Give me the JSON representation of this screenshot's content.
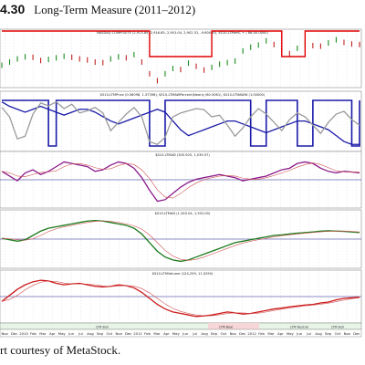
{
  "figure": {
    "number": "4.30",
    "title": "Long-Term Measure (2011–2012)",
    "caption": "rt courtesy of MetaStock."
  },
  "chart_data": [
    {
      "type": "line",
      "panel": "price",
      "title": "NASDAQ COMPOSITE (2,913.89, 2,916.85, 2,901.04, 2,902.31, -9.80000), $S10-LTMeHC + ( 86.00.0000)",
      "series": [
        {
          "name": "NASDAQ COMPOSITE",
          "color": "#1a8a1a",
          "style": "bars",
          "values": [
            2640,
            2700,
            2760,
            2800,
            2790,
            2730,
            2750,
            2780,
            2810,
            2790,
            2760,
            2740,
            2700,
            2690,
            2760,
            2800,
            2780,
            2840,
            2700,
            2480,
            2350,
            2480,
            2580,
            2560,
            2680,
            2620,
            2550,
            2600,
            2660,
            2690,
            2720,
            2910,
            2980,
            3020,
            3100,
            3030,
            2930,
            2860,
            2960,
            3040,
            3010,
            3000,
            3060,
            3120,
            3070,
            3040,
            3030
          ]
        },
        {
          "name": "$S10-LTMeHC",
          "color": "#e00000",
          "style": "step",
          "values": [
            1,
            1,
            1,
            1,
            1,
            1,
            1,
            1,
            1,
            1,
            1,
            1,
            1,
            1,
            1,
            1,
            1,
            1,
            1,
            0,
            0,
            0,
            0,
            0,
            0,
            0,
            0,
            1,
            1,
            1,
            1,
            1,
            1,
            1,
            1,
            1,
            0,
            0,
            0,
            1,
            1,
            1,
            1,
            1,
            1,
            1,
            1
          ]
        }
      ]
    },
    {
      "type": "line",
      "panel": "ltm-price",
      "title": "$S10-LTMPrice (0.56098, 1.37398), $S10-LTMAWPercent(Nearly (60.5061), $S10-LTMAWW (1.00000)",
      "series": [
        {
          "name": "$S10-LTMPrice",
          "color": "#1a1aa8",
          "values": [
            0.85,
            0.82,
            0.8,
            0.78,
            0.8,
            0.82,
            0.8,
            0.78,
            0.76,
            0.78,
            0.8,
            0.8,
            0.78,
            0.75,
            0.72,
            0.7,
            0.72,
            0.74,
            0.76,
            0.78,
            0.8,
            0.78,
            0.72,
            0.66,
            0.62,
            0.64,
            0.66,
            0.68,
            0.7,
            0.72,
            0.72,
            0.7,
            0.68,
            0.66,
            0.64,
            0.66,
            0.68,
            0.7,
            0.72,
            0.72,
            0.7,
            0.68,
            0.66,
            0.62,
            0.58,
            0.56,
            0.56
          ]
        },
        {
          "name": "$S10-LTMAWW",
          "color": "#1a1aa8",
          "style": "step",
          "values": [
            1,
            1,
            1,
            1,
            1,
            1,
            0,
            1,
            1,
            1,
            1,
            1,
            1,
            1,
            1,
            1,
            1,
            1,
            1,
            0,
            0,
            1,
            1,
            1,
            1,
            1,
            1,
            1,
            1,
            1,
            1,
            1,
            0,
            0,
            1,
            1,
            1,
            1,
            0,
            0,
            1,
            1,
            1,
            1,
            1,
            0,
            1
          ]
        },
        {
          "name": "$S10-LTMAWPercent",
          "color": "#9a9a9a",
          "values": [
            0.72,
            0.55,
            0.15,
            0.2,
            0.6,
            0.8,
            0.75,
            0.82,
            0.7,
            0.78,
            0.62,
            0.66,
            0.72,
            0.62,
            0.3,
            0.45,
            0.6,
            0.72,
            0.55,
            0.1,
            0.05,
            0.18,
            0.55,
            0.62,
            0.66,
            0.7,
            0.68,
            0.55,
            0.58,
            0.4,
            0.2,
            0.35,
            0.55,
            0.7,
            0.6,
            0.45,
            0.3,
            0.5,
            0.62,
            0.55,
            0.4,
            0.25,
            0.45,
            0.6,
            0.65,
            0.5,
            0.4
          ]
        }
      ]
    },
    {
      "type": "line",
      "panel": "ltm-ad",
      "title": "$S10-LTMAD (300.503, 1,039.37)",
      "series": [
        {
          "name": "$S10-LTMAD",
          "color": "#8a1a8a",
          "values": [
            0.3,
            0.15,
            0.0,
            0.25,
            0.35,
            0.2,
            0.3,
            0.45,
            0.6,
            0.55,
            0.5,
            0.45,
            0.3,
            0.35,
            0.5,
            0.6,
            0.55,
            0.4,
            0.1,
            -0.3,
            -0.65,
            -0.6,
            -0.4,
            -0.2,
            -0.05,
            0.05,
            0.1,
            0.15,
            0.2,
            0.15,
            0.1,
            0.0,
            0.05,
            0.1,
            0.15,
            0.25,
            0.35,
            0.4,
            0.55,
            0.6,
            0.55,
            0.4,
            0.3,
            0.25,
            0.3,
            0.28,
            0.25
          ]
        }
      ]
    },
    {
      "type": "line",
      "panel": "ltm-ad2",
      "title": "$S10-LTMAD (1,343.04, 1,502.00)",
      "series": [
        {
          "name": "$S10-LTMAD",
          "color": "#1a7a1a",
          "values": [
            0.1,
            0.05,
            0.0,
            0.05,
            0.2,
            0.35,
            0.45,
            0.5,
            0.55,
            0.6,
            0.65,
            0.7,
            0.72,
            0.7,
            0.65,
            0.6,
            0.55,
            0.45,
            0.25,
            -0.05,
            -0.35,
            -0.55,
            -0.65,
            -0.7,
            -0.65,
            -0.55,
            -0.45,
            -0.35,
            -0.25,
            -0.15,
            -0.05,
            0.0,
            0.05,
            0.1,
            0.15,
            0.2,
            0.22,
            0.25,
            0.28,
            0.3,
            0.32,
            0.35,
            0.36,
            0.35,
            0.34,
            0.32,
            0.3
          ]
        }
      ]
    },
    {
      "type": "line",
      "panel": "ltm-volume",
      "title": "$S10-LTMVolume (124,259, 11,5290)",
      "series": [
        {
          "name": "$S10-LTMVolume",
          "color": "#cc1a1a",
          "values": [
            0.0,
            0.2,
            0.4,
            0.55,
            0.65,
            0.7,
            0.68,
            0.6,
            0.55,
            0.58,
            0.6,
            0.55,
            0.5,
            0.48,
            0.5,
            0.55,
            0.52,
            0.45,
            0.3,
            0.1,
            -0.1,
            -0.25,
            -0.35,
            -0.4,
            -0.45,
            -0.5,
            -0.48,
            -0.45,
            -0.4,
            -0.35,
            -0.38,
            -0.42,
            -0.4,
            -0.35,
            -0.3,
            -0.25,
            -0.22,
            -0.18,
            -0.15,
            -0.12,
            -0.1,
            -0.05,
            -0.02,
            0.05,
            0.1,
            0.12,
            0.14
          ]
        }
      ]
    }
  ],
  "time_axis": {
    "labels": [
      "Nov",
      "Dec",
      "2010",
      "Feb",
      "Mar",
      "Apr",
      "May",
      "Jun",
      "Jul",
      "Aug",
      "Sep",
      "Oct",
      "Nov",
      "Dec",
      "2011",
      "Feb",
      "Mar",
      "Apr",
      "May",
      "Jun",
      "Jul",
      "Aug",
      "Sep",
      "Oct",
      "Nov",
      "Dec",
      "2012",
      "Feb",
      "Mar",
      "Apr",
      "May",
      "Jun",
      "Jul",
      "Aug",
      "Sep",
      "Oct",
      "Nov",
      "Dec"
    ],
    "regime_labels": [
      "LTM Bull",
      "LTM Bear",
      "LTM Neutral",
      "LTM Bull"
    ]
  }
}
